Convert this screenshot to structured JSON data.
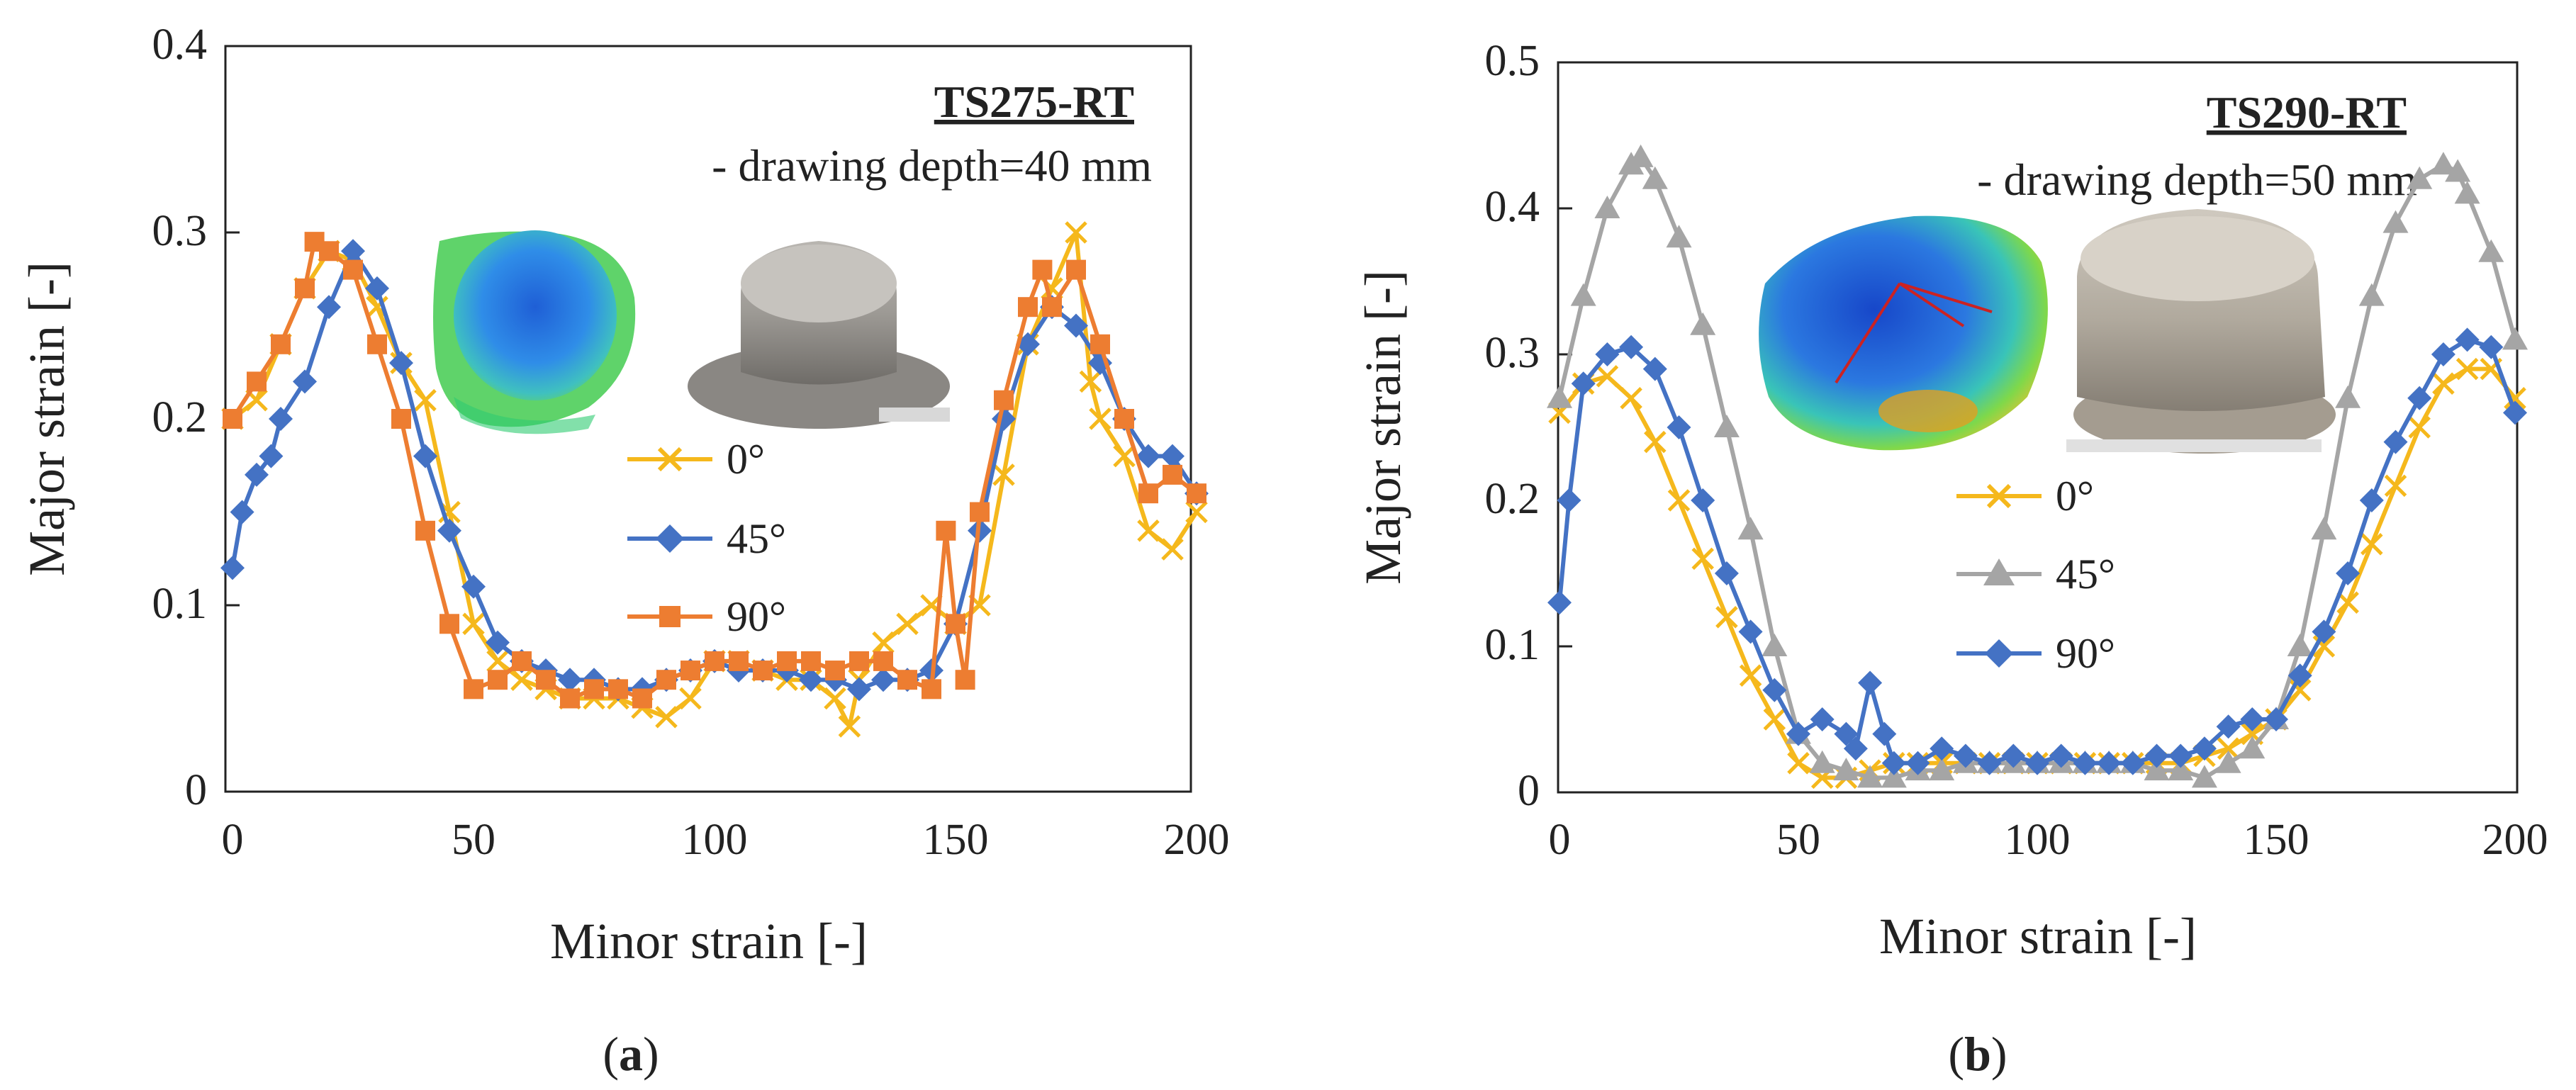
{
  "chart_data": [
    {
      "type": "line",
      "panel_label_prefix": "(",
      "panel_label_letter": "a",
      "panel_label_suffix": ")",
      "title": "TS275-RT",
      "subtitle": "- drawing depth=40 mm",
      "xlabel": "Minor strain [-]",
      "ylabel": "Major strain [-]",
      "xlim": [
        0,
        200
      ],
      "ylim": [
        0,
        0.4
      ],
      "xticks": [
        0,
        50,
        100,
        150,
        200
      ],
      "yticks": [
        0,
        0.1,
        0.2,
        0.3,
        0.4
      ],
      "xtick_labels": [
        "0",
        "50",
        "100",
        "150",
        "200"
      ],
      "ytick_labels": [
        "0",
        "0.1",
        "0.2",
        "0.3",
        "0.4"
      ],
      "legend_position": "center",
      "series": [
        {
          "name": "0°",
          "color": "#F5B81C",
          "marker": "x",
          "x": [
            0,
            5,
            10,
            15,
            20,
            25,
            30,
            35,
            40,
            45,
            50,
            55,
            60,
            65,
            70,
            75,
            80,
            85,
            90,
            95,
            100,
            105,
            110,
            115,
            120,
            125,
            128,
            130,
            135,
            140,
            145,
            150,
            155,
            160,
            165,
            170,
            175,
            178,
            180,
            185,
            190,
            195,
            200
          ],
          "y": [
            0.2,
            0.21,
            0.24,
            0.27,
            0.29,
            0.285,
            0.26,
            0.23,
            0.21,
            0.15,
            0.09,
            0.07,
            0.06,
            0.055,
            0.05,
            0.05,
            0.05,
            0.045,
            0.04,
            0.05,
            0.07,
            0.07,
            0.065,
            0.06,
            0.06,
            0.05,
            0.035,
            0.06,
            0.08,
            0.09,
            0.1,
            0.09,
            0.1,
            0.17,
            0.24,
            0.27,
            0.3,
            0.22,
            0.2,
            0.18,
            0.14,
            0.13,
            0.15
          ]
        },
        {
          "name": "45°",
          "color": "#4472C4",
          "marker": "diamond",
          "x": [
            0,
            2,
            5,
            8,
            10,
            15,
            20,
            25,
            30,
            35,
            40,
            45,
            50,
            55,
            60,
            65,
            70,
            75,
            80,
            85,
            90,
            95,
            100,
            105,
            110,
            115,
            120,
            125,
            130,
            135,
            140,
            145,
            150,
            155,
            160,
            165,
            170,
            175,
            180,
            185,
            190,
            195,
            200
          ],
          "y": [
            0.12,
            0.15,
            0.17,
            0.18,
            0.2,
            0.22,
            0.26,
            0.29,
            0.27,
            0.23,
            0.18,
            0.14,
            0.11,
            0.08,
            0.07,
            0.065,
            0.06,
            0.06,
            0.055,
            0.055,
            0.06,
            0.065,
            0.07,
            0.065,
            0.065,
            0.065,
            0.06,
            0.06,
            0.055,
            0.06,
            0.06,
            0.065,
            0.09,
            0.14,
            0.2,
            0.24,
            0.26,
            0.25,
            0.23,
            0.2,
            0.18,
            0.18,
            0.16
          ]
        },
        {
          "name": "90°",
          "color": "#ED7D31",
          "marker": "square",
          "x": [
            0,
            5,
            10,
            15,
            17,
            20,
            25,
            30,
            35,
            40,
            45,
            50,
            55,
            60,
            65,
            70,
            75,
            80,
            85,
            90,
            95,
            100,
            105,
            110,
            115,
            120,
            125,
            130,
            135,
            140,
            145,
            148,
            150,
            152,
            155,
            160,
            165,
            168,
            170,
            175,
            180,
            185,
            190,
            195,
            200
          ],
          "y": [
            0.2,
            0.22,
            0.24,
            0.27,
            0.295,
            0.29,
            0.28,
            0.24,
            0.2,
            0.14,
            0.09,
            0.055,
            0.06,
            0.07,
            0.06,
            0.05,
            0.055,
            0.055,
            0.05,
            0.06,
            0.065,
            0.07,
            0.07,
            0.065,
            0.07,
            0.07,
            0.065,
            0.07,
            0.07,
            0.06,
            0.055,
            0.14,
            0.09,
            0.06,
            0.15,
            0.21,
            0.26,
            0.28,
            0.26,
            0.28,
            0.24,
            0.2,
            0.16,
            0.17,
            0.16
          ]
        }
      ]
    },
    {
      "type": "line",
      "panel_label_prefix": "(",
      "panel_label_letter": "b",
      "panel_label_suffix": ")",
      "title": "TS290-RT",
      "subtitle": "- drawing depth=50 mm",
      "xlabel": "Minor strain [-]",
      "ylabel": "Major strain [-]",
      "xlim": [
        0,
        200
      ],
      "ylim": [
        0,
        0.5
      ],
      "xticks": [
        0,
        50,
        100,
        150,
        200
      ],
      "yticks": [
        0,
        0.1,
        0.2,
        0.3,
        0.4,
        0.5
      ],
      "xtick_labels": [
        "0",
        "50",
        "100",
        "150",
        "200"
      ],
      "ytick_labels": [
        "0",
        "0.1",
        "0.2",
        "0.3",
        "0.4",
        "0.5"
      ],
      "legend_position": "center",
      "series": [
        {
          "name": "0°",
          "color": "#F5B81C",
          "marker": "x",
          "x": [
            0,
            5,
            10,
            15,
            20,
            25,
            30,
            35,
            40,
            45,
            50,
            55,
            60,
            65,
            70,
            75,
            80,
            85,
            90,
            95,
            100,
            105,
            110,
            115,
            120,
            125,
            130,
            135,
            140,
            145,
            150,
            155,
            160,
            165,
            170,
            175,
            180,
            185,
            190,
            195,
            200
          ],
          "y": [
            0.26,
            0.28,
            0.285,
            0.27,
            0.24,
            0.2,
            0.16,
            0.12,
            0.08,
            0.05,
            0.02,
            0.01,
            0.01,
            0.015,
            0.02,
            0.02,
            0.02,
            0.02,
            0.02,
            0.02,
            0.02,
            0.02,
            0.02,
            0.02,
            0.02,
            0.02,
            0.02,
            0.025,
            0.03,
            0.04,
            0.05,
            0.07,
            0.1,
            0.13,
            0.17,
            0.21,
            0.25,
            0.28,
            0.29,
            0.29,
            0.27
          ]
        },
        {
          "name": "45°",
          "color": "#A5A5A5",
          "marker": "triangle",
          "x": [
            0,
            5,
            10,
            15,
            17,
            20,
            25,
            30,
            35,
            40,
            45,
            50,
            55,
            60,
            65,
            70,
            75,
            80,
            85,
            90,
            95,
            100,
            105,
            110,
            115,
            120,
            125,
            130,
            135,
            140,
            145,
            150,
            155,
            160,
            165,
            170,
            175,
            180,
            185,
            188,
            190,
            195,
            200
          ],
          "y": [
            0.27,
            0.34,
            0.4,
            0.43,
            0.435,
            0.42,
            0.38,
            0.32,
            0.25,
            0.18,
            0.1,
            0.04,
            0.02,
            0.015,
            0.01,
            0.01,
            0.015,
            0.015,
            0.02,
            0.02,
            0.02,
            0.02,
            0.02,
            0.02,
            0.02,
            0.02,
            0.015,
            0.015,
            0.01,
            0.02,
            0.03,
            0.05,
            0.1,
            0.18,
            0.27,
            0.34,
            0.39,
            0.42,
            0.43,
            0.425,
            0.41,
            0.37,
            0.31
          ]
        },
        {
          "name": "90°",
          "color": "#4472C4",
          "marker": "diamond",
          "x": [
            0,
            2,
            5,
            10,
            15,
            20,
            25,
            30,
            35,
            40,
            45,
            50,
            55,
            60,
            62,
            65,
            68,
            70,
            75,
            80,
            85,
            90,
            95,
            100,
            105,
            110,
            115,
            120,
            125,
            130,
            135,
            140,
            145,
            150,
            155,
            160,
            165,
            170,
            175,
            180,
            185,
            190,
            195,
            200
          ],
          "y": [
            0.13,
            0.2,
            0.28,
            0.3,
            0.305,
            0.29,
            0.25,
            0.2,
            0.15,
            0.11,
            0.07,
            0.04,
            0.05,
            0.04,
            0.03,
            0.075,
            0.04,
            0.02,
            0.02,
            0.03,
            0.025,
            0.02,
            0.025,
            0.02,
            0.025,
            0.02,
            0.02,
            0.02,
            0.025,
            0.025,
            0.03,
            0.045,
            0.05,
            0.05,
            0.08,
            0.11,
            0.15,
            0.2,
            0.24,
            0.27,
            0.3,
            0.31,
            0.305,
            0.26
          ]
        }
      ]
    }
  ]
}
